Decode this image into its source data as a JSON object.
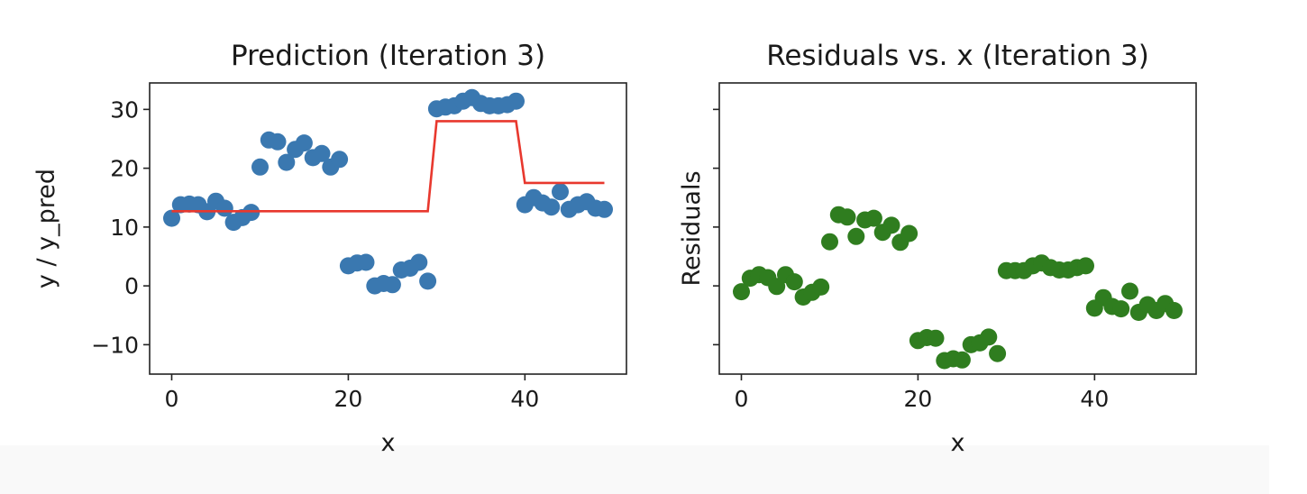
{
  "chart_data": [
    {
      "type": "scatter",
      "title": "Prediction (Iteration 3)",
      "xlabel": "x",
      "ylabel": "y / y_pred",
      "xlim": [
        -2.5,
        51.5
      ],
      "ylim": [
        -15,
        34.5
      ],
      "xticks": [
        0,
        20,
        40
      ],
      "xtick_labels": [
        "0",
        "20",
        "40"
      ],
      "yticks": [
        -10,
        0,
        10,
        20,
        30
      ],
      "ytick_labels": [
        "−10",
        "0",
        "10",
        "20",
        "30"
      ],
      "scatter_color": "#3a78b0",
      "line_color": "#e8382e",
      "series": [
        {
          "name": "y",
          "kind": "scatter",
          "x": [
            0,
            1,
            2,
            3,
            4,
            5,
            6,
            7,
            8,
            9,
            10,
            11,
            12,
            13,
            14,
            15,
            16,
            17,
            18,
            19,
            20,
            21,
            22,
            23,
            24,
            25,
            26,
            27,
            28,
            29,
            30,
            31,
            32,
            33,
            34,
            35,
            36,
            37,
            38,
            39,
            40,
            41,
            42,
            43,
            44,
            45,
            46,
            47,
            48,
            49
          ],
          "y": [
            11.5,
            13.8,
            13.9,
            13.8,
            12.6,
            14.4,
            13.2,
            10.8,
            11.6,
            12.5,
            20.2,
            24.8,
            24.5,
            21.0,
            23.2,
            24.3,
            21.8,
            22.5,
            20.2,
            21.5,
            3.4,
            3.9,
            4.0,
            0.0,
            0.4,
            0.2,
            2.7,
            3.0,
            4.0,
            0.8,
            30.1,
            30.4,
            30.6,
            31.4,
            32.0,
            31.0,
            30.6,
            30.6,
            30.8,
            31.4,
            13.8,
            15.0,
            14.1,
            13.4,
            16.0,
            13.0,
            13.8,
            14.3,
            13.2,
            13.0
          ]
        },
        {
          "name": "y_pred",
          "kind": "line",
          "x": [
            0,
            29,
            30,
            39,
            40,
            49
          ],
          "y": [
            12.7,
            12.7,
            28.0,
            28.0,
            17.5,
            17.5
          ]
        }
      ]
    },
    {
      "type": "scatter",
      "title": "Residuals vs. x (Iteration 3)",
      "xlabel": "x",
      "ylabel": "Residuals",
      "xlim": [
        -2.5,
        51.5
      ],
      "ylim": [
        -15,
        34.5
      ],
      "xticks": [
        0,
        20,
        40
      ],
      "xtick_labels": [
        "0",
        "20",
        "40"
      ],
      "yticks": [
        -10,
        0,
        10,
        20,
        30
      ],
      "scatter_color": "#2f7d1f",
      "series": [
        {
          "name": "residuals",
          "kind": "scatter",
          "x": [
            0,
            1,
            2,
            3,
            4,
            5,
            6,
            7,
            8,
            9,
            10,
            11,
            12,
            13,
            14,
            15,
            16,
            17,
            18,
            19,
            20,
            21,
            22,
            23,
            24,
            25,
            26,
            27,
            28,
            29,
            30,
            31,
            32,
            33,
            34,
            35,
            36,
            37,
            38,
            39,
            40,
            41,
            42,
            43,
            44,
            45,
            46,
            47,
            48,
            49
          ],
          "y": [
            -1.0,
            1.3,
            1.9,
            1.4,
            -0.1,
            1.9,
            0.7,
            -1.9,
            -1.1,
            -0.2,
            7.5,
            12.1,
            11.7,
            8.4,
            11.2,
            11.5,
            9.1,
            10.3,
            7.4,
            8.9,
            -9.3,
            -8.8,
            -8.9,
            -12.7,
            -12.4,
            -12.6,
            -10.0,
            -9.7,
            -8.7,
            -11.5,
            2.6,
            2.6,
            2.6,
            3.4,
            3.9,
            3.1,
            2.7,
            2.7,
            3.1,
            3.4,
            -3.8,
            -2.0,
            -3.5,
            -3.9,
            -0.9,
            -4.5,
            -3.2,
            -4.2,
            -3.0,
            -4.2
          ]
        }
      ]
    }
  ]
}
